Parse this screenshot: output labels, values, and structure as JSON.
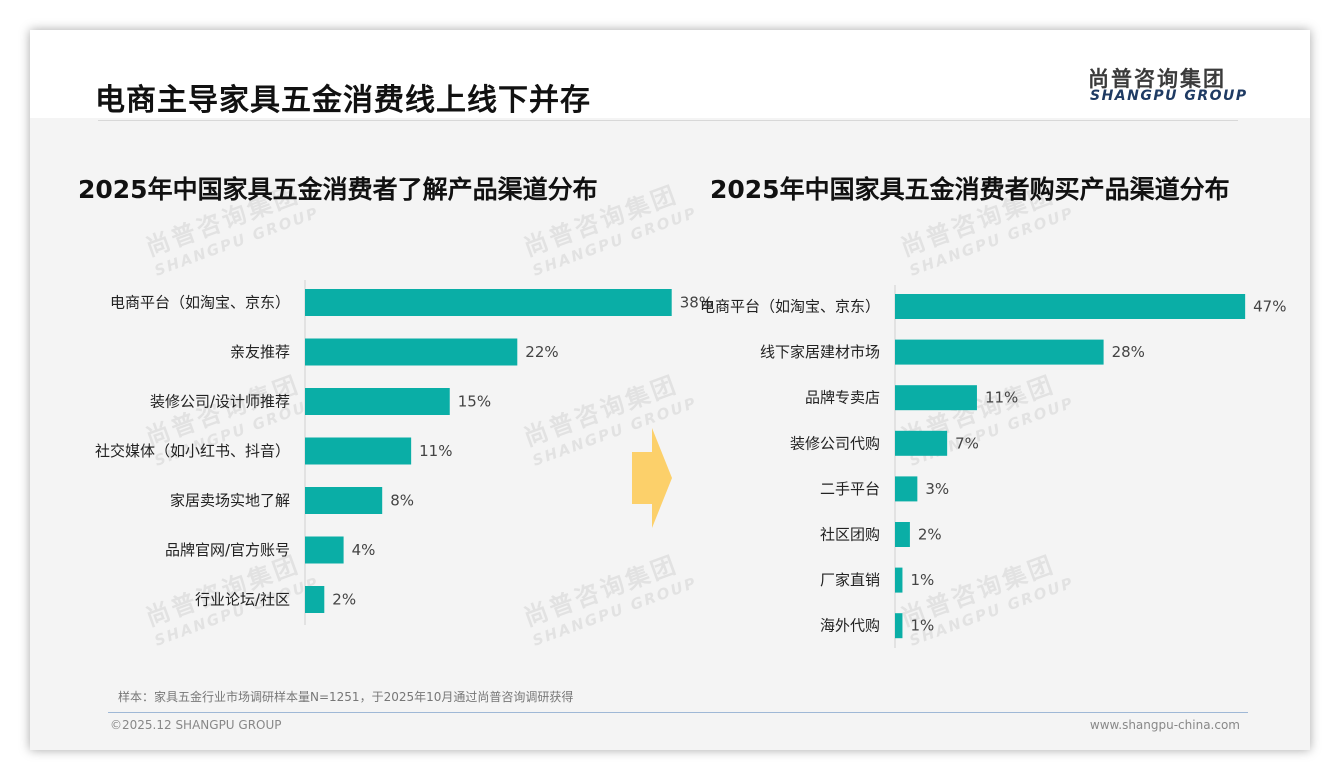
{
  "header": {
    "title": "电商主导家具五金消费线上线下并存",
    "logo_cn": "尚普咨询集团",
    "logo_en": "SHANGPU GROUP"
  },
  "watermark": {
    "cn": "尚普咨询集团",
    "en": "SHANGPU GROUP"
  },
  "colors": {
    "bar": "#0aaea6",
    "arrow": "#fcd06a"
  },
  "chart_data": [
    {
      "type": "bar",
      "orientation": "horizontal",
      "title": "2025年中国家具五金消费者了解产品渠道分布",
      "categories": [
        "电商平台（如淘宝、京东）",
        "亲友推荐",
        "装修公司/设计师推荐",
        "社交媒体（如小红书、抖音）",
        "家居卖场实地了解",
        "品牌官网/官方账号",
        "行业论坛/社区"
      ],
      "values": [
        38,
        22,
        15,
        11,
        8,
        4,
        2
      ],
      "value_labels": [
        "38%",
        "22%",
        "15%",
        "11%",
        "8%",
        "4%",
        "2%"
      ],
      "unit": "%"
    },
    {
      "type": "bar",
      "orientation": "horizontal",
      "title": "2025年中国家具五金消费者购买产品渠道分布",
      "categories": [
        "电商平台（如淘宝、京东）",
        "线下家居建材市场",
        "品牌专卖店",
        "装修公司代购",
        "二手平台",
        "社区团购",
        "厂家直销",
        "海外代购"
      ],
      "values": [
        47,
        28,
        11,
        7,
        3,
        2,
        1,
        1
      ],
      "value_labels": [
        "47%",
        "28%",
        "11%",
        "7%",
        "3%",
        "2%",
        "1%",
        "1%"
      ],
      "unit": "%"
    }
  ],
  "footer": {
    "note": "样本：家具五金行业市场调研样本量N=1251，于2025年10月通过尚普咨询调研获得",
    "copyright": "©2025.12 SHANGPU GROUP",
    "website": "www.shangpu-china.com"
  }
}
